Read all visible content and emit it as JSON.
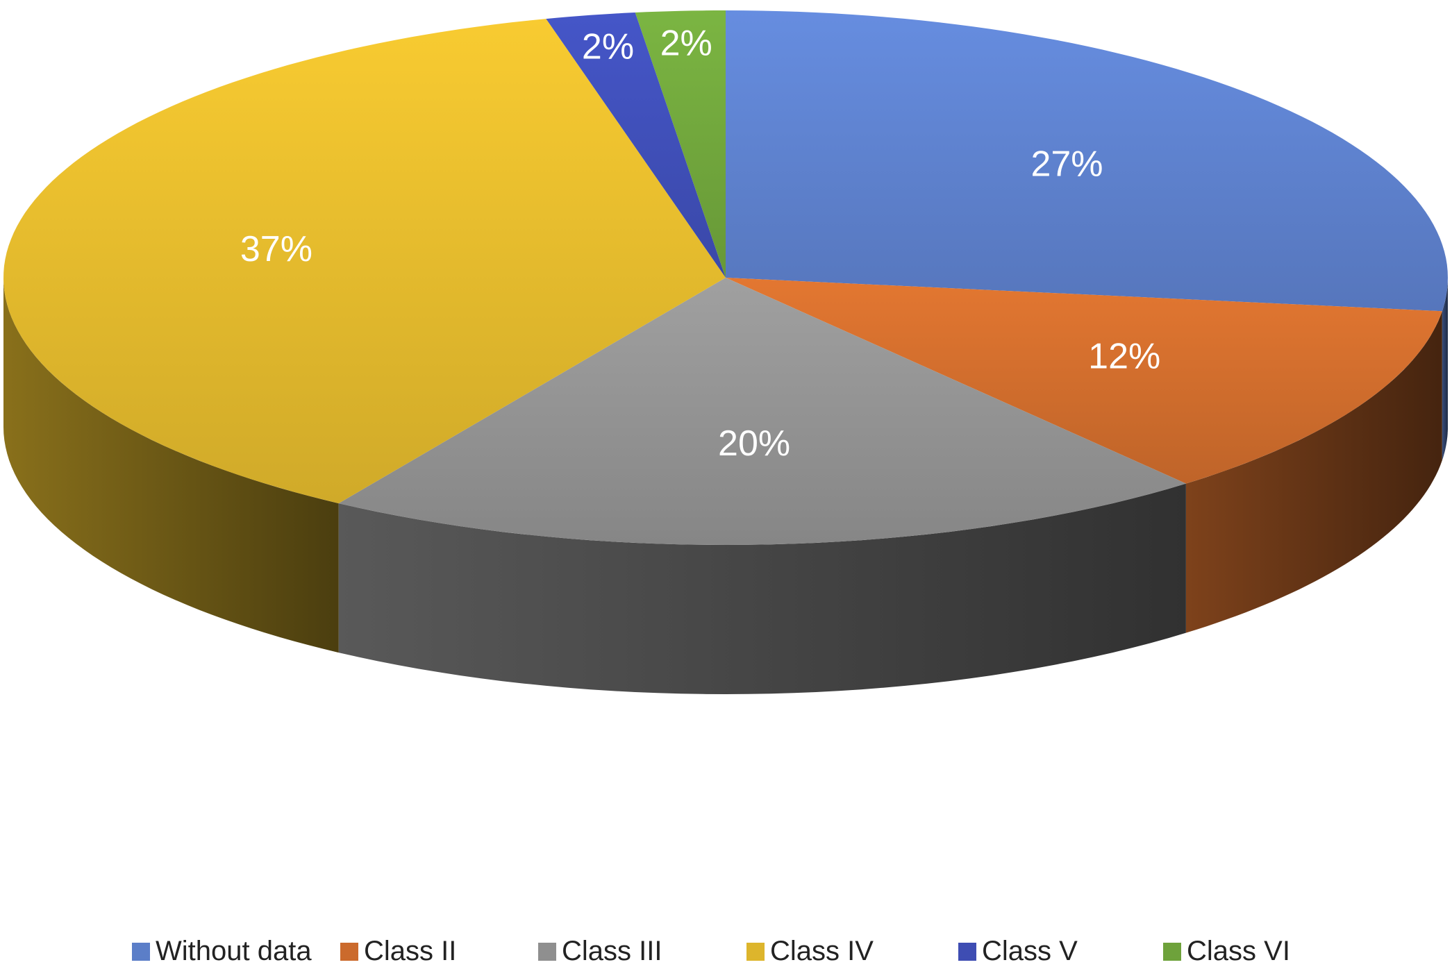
{
  "chart_data": {
    "type": "pie",
    "title": "",
    "style": "3d",
    "start_angle_degrees": 0,
    "direction": "clockwise",
    "slices": [
      {
        "label": "Without data",
        "value": 27,
        "display": "27%",
        "color": "#5B7EC8"
      },
      {
        "label": "Class II",
        "value": 12,
        "display": "12%",
        "color": "#CB6A2C"
      },
      {
        "label": "Class III",
        "value": 20,
        "display": "20%",
        "color": "#8F8F8F"
      },
      {
        "label": "Class IV",
        "value": 37,
        "display": "37%",
        "color": "#DDB52C"
      },
      {
        "label": "Class V",
        "value": 2,
        "display": "2%",
        "color": "#3E4DB3"
      },
      {
        "label": "Class VI",
        "value": 2,
        "display": "2%",
        "color": "#6EA23B"
      }
    ],
    "legend": {
      "position": "bottom",
      "entries": [
        "Without data",
        "Class II",
        "Class III",
        "Class IV",
        "Class V",
        "Class VI"
      ]
    }
  }
}
